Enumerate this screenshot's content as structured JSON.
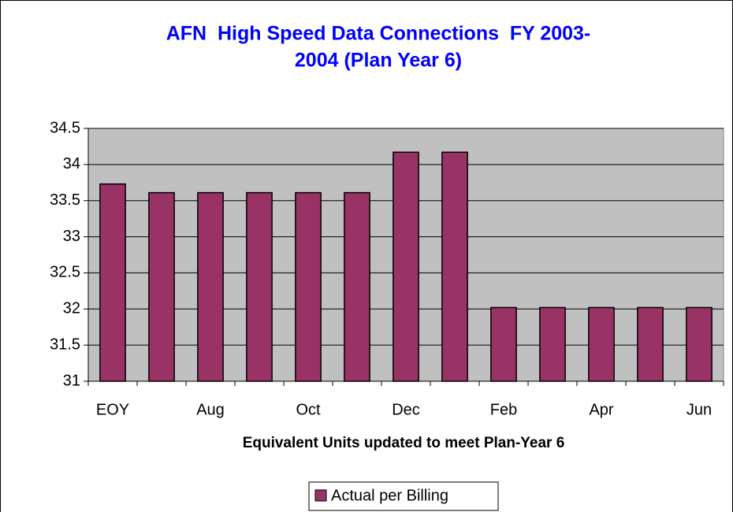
{
  "chart_data": {
    "type": "bar",
    "title": [
      "AFN  High Speed Data Connections  FY 2003-",
      "2004 (Plan Year 6)"
    ],
    "x_label": "Equivalent Units updated to meet Plan-Year 6",
    "categories": [
      "EOY",
      null,
      "Aug",
      null,
      "Oct",
      null,
      "Dec",
      null,
      "Feb",
      null,
      "Apr",
      null,
      "Jun"
    ],
    "series": [
      {
        "name": "Actual per Billing",
        "color": "#993366",
        "values": [
          33.73,
          33.61,
          33.61,
          33.61,
          33.61,
          33.61,
          34.17,
          34.17,
          32.02,
          32.02,
          32.02,
          32.02,
          32.02
        ]
      }
    ],
    "ylim": [
      31,
      34.5
    ],
    "yticks": [
      31,
      31.5,
      32,
      32.5,
      33,
      33.5,
      34,
      34.5
    ],
    "grid": true,
    "plot_background": "#c0c0c0",
    "legend": "bottom"
  }
}
